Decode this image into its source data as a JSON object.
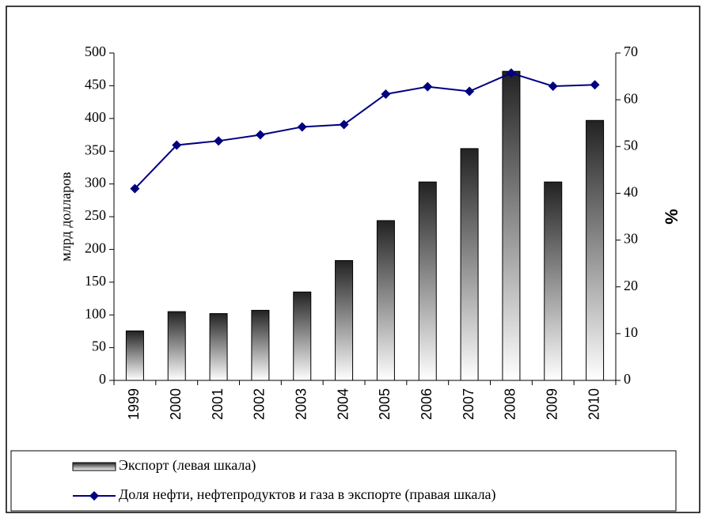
{
  "chart_data": {
    "type": "bar_line",
    "y_label": "млрд  долларов",
    "y2_label": "%",
    "categories": [
      "1999",
      "2000",
      "2001",
      "2002",
      "2003",
      "2004",
      "2005",
      "2006",
      "2007",
      "2008",
      "2009",
      "2010"
    ],
    "series": [
      {
        "name": "Экспорт (левая шкала)",
        "type": "bar",
        "color": "#000000",
        "values": [
          75.6,
          105,
          102,
          107,
          135,
          183,
          244,
          303,
          354,
          472,
          303,
          397
        ]
      },
      {
        "name": "Доля нефти, нефтепродуктов и газа в экспорте (правая шкала)",
        "type": "line",
        "axis": "y2",
        "color": "#000080",
        "values": [
          41,
          50.3,
          51.2,
          52.5,
          54.2,
          54.7,
          61.2,
          62.8,
          61.8,
          65.7,
          62.9,
          63.2
        ]
      }
    ],
    "ylim": [
      0,
      500
    ],
    "yticks": [
      0,
      50,
      100,
      150,
      200,
      250,
      300,
      350,
      400,
      450,
      500
    ],
    "y2lim": [
      0,
      70
    ],
    "y2ticks": [
      0,
      10,
      20,
      30,
      40,
      50,
      60,
      70
    ],
    "grid": false
  }
}
